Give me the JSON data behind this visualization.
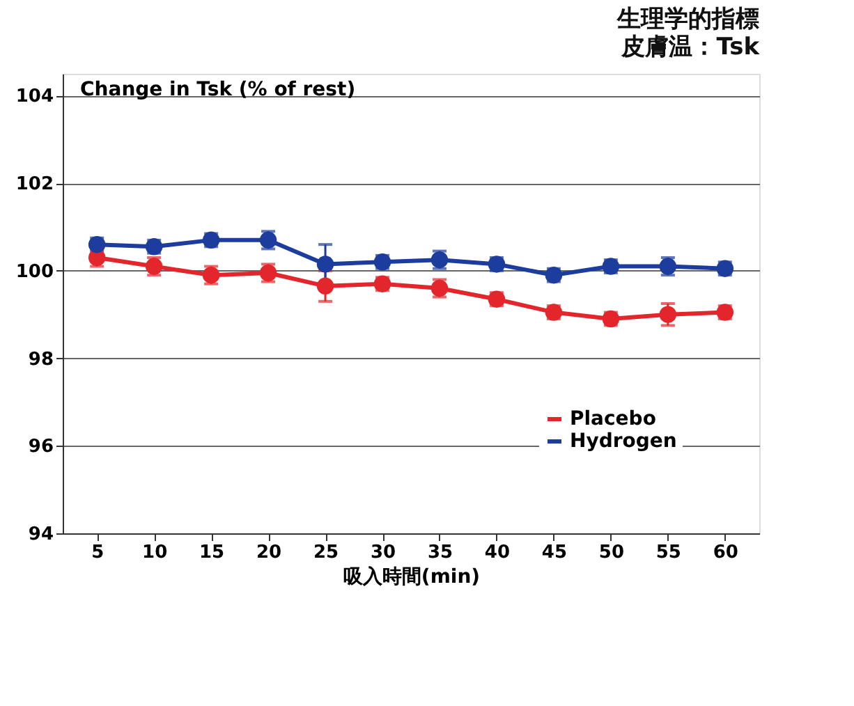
{
  "chart_data": {
    "type": "line",
    "title": "生理学的指標",
    "subtitle": "皮膚温：Tsk",
    "ylabel": "Change in Tsk (% of rest)",
    "xlabel": "吸入時間(min)",
    "categories": [
      "5",
      "10",
      "15",
      "20",
      "25",
      "30",
      "35",
      "40",
      "45",
      "50",
      "55",
      "60"
    ],
    "series": [
      {
        "name": "Placebo",
        "color": "#e3262b",
        "values": [
          100.3,
          100.1,
          99.9,
          99.95,
          99.65,
          99.7,
          99.6,
          99.35,
          99.05,
          98.9,
          99.0,
          99.05
        ],
        "errors": [
          0.2,
          0.2,
          0.2,
          0.2,
          0.35,
          0.15,
          0.2,
          0.15,
          0.15,
          0.15,
          0.25,
          0.15
        ]
      },
      {
        "name": "Hydrogen",
        "color": "#1c3c9e",
        "values": [
          100.6,
          100.55,
          100.7,
          100.7,
          100.15,
          100.2,
          100.25,
          100.15,
          99.9,
          100.1,
          100.1,
          100.05
        ],
        "errors": [
          0.15,
          0.15,
          0.15,
          0.2,
          0.45,
          0.15,
          0.2,
          0.15,
          0.15,
          0.15,
          0.2,
          0.15
        ]
      }
    ],
    "ylim": [
      94,
      104.5
    ],
    "yticks": [
      94,
      96,
      98,
      100,
      102,
      104
    ],
    "grid": "y",
    "legend": "bottom right",
    "marker": "circle",
    "line_style": "solid"
  }
}
